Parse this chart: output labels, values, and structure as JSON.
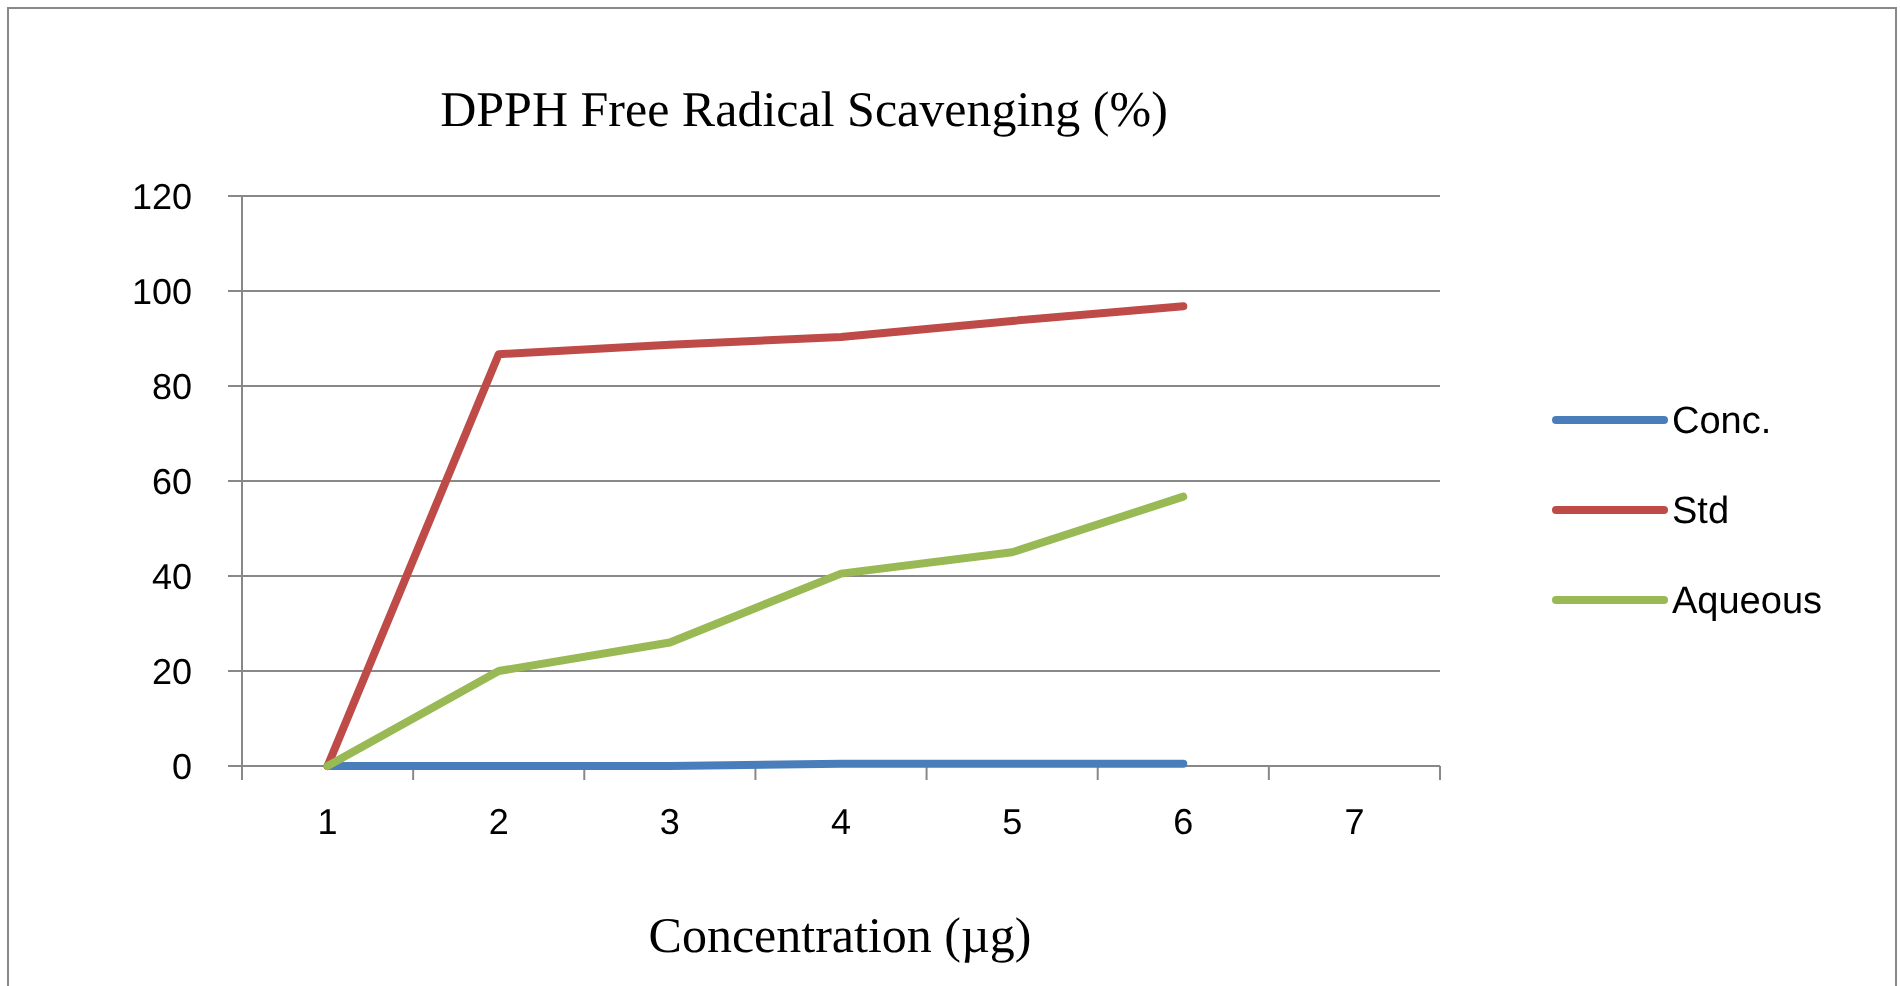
{
  "chart_data": {
    "type": "line",
    "title": "DPPH Free Radical Scavenging (%)",
    "xlabel": "Concentration (µg)",
    "categories": [
      "1",
      "2",
      "3",
      "4",
      "5",
      "6",
      "7"
    ],
    "series": [
      {
        "name": "Conc.",
        "color": "#4a7ebb",
        "values": [
          0,
          0,
          0,
          0.5,
          0.5,
          0.5,
          null
        ]
      },
      {
        "name": "Std",
        "color": "#be4b48",
        "values": [
          0,
          86.7,
          88.7,
          90.3,
          93.7,
          96.8,
          null
        ]
      },
      {
        "name": "Aqueous",
        "color": "#98b954",
        "values": [
          0,
          20,
          26,
          40.5,
          45,
          56.7,
          null
        ]
      }
    ],
    "ylim": [
      0,
      120
    ],
    "yticks": [
      0,
      20,
      40,
      60,
      80,
      100,
      120
    ],
    "grid": "y",
    "legend": "right",
    "marker": "none",
    "line_style": "solid"
  }
}
